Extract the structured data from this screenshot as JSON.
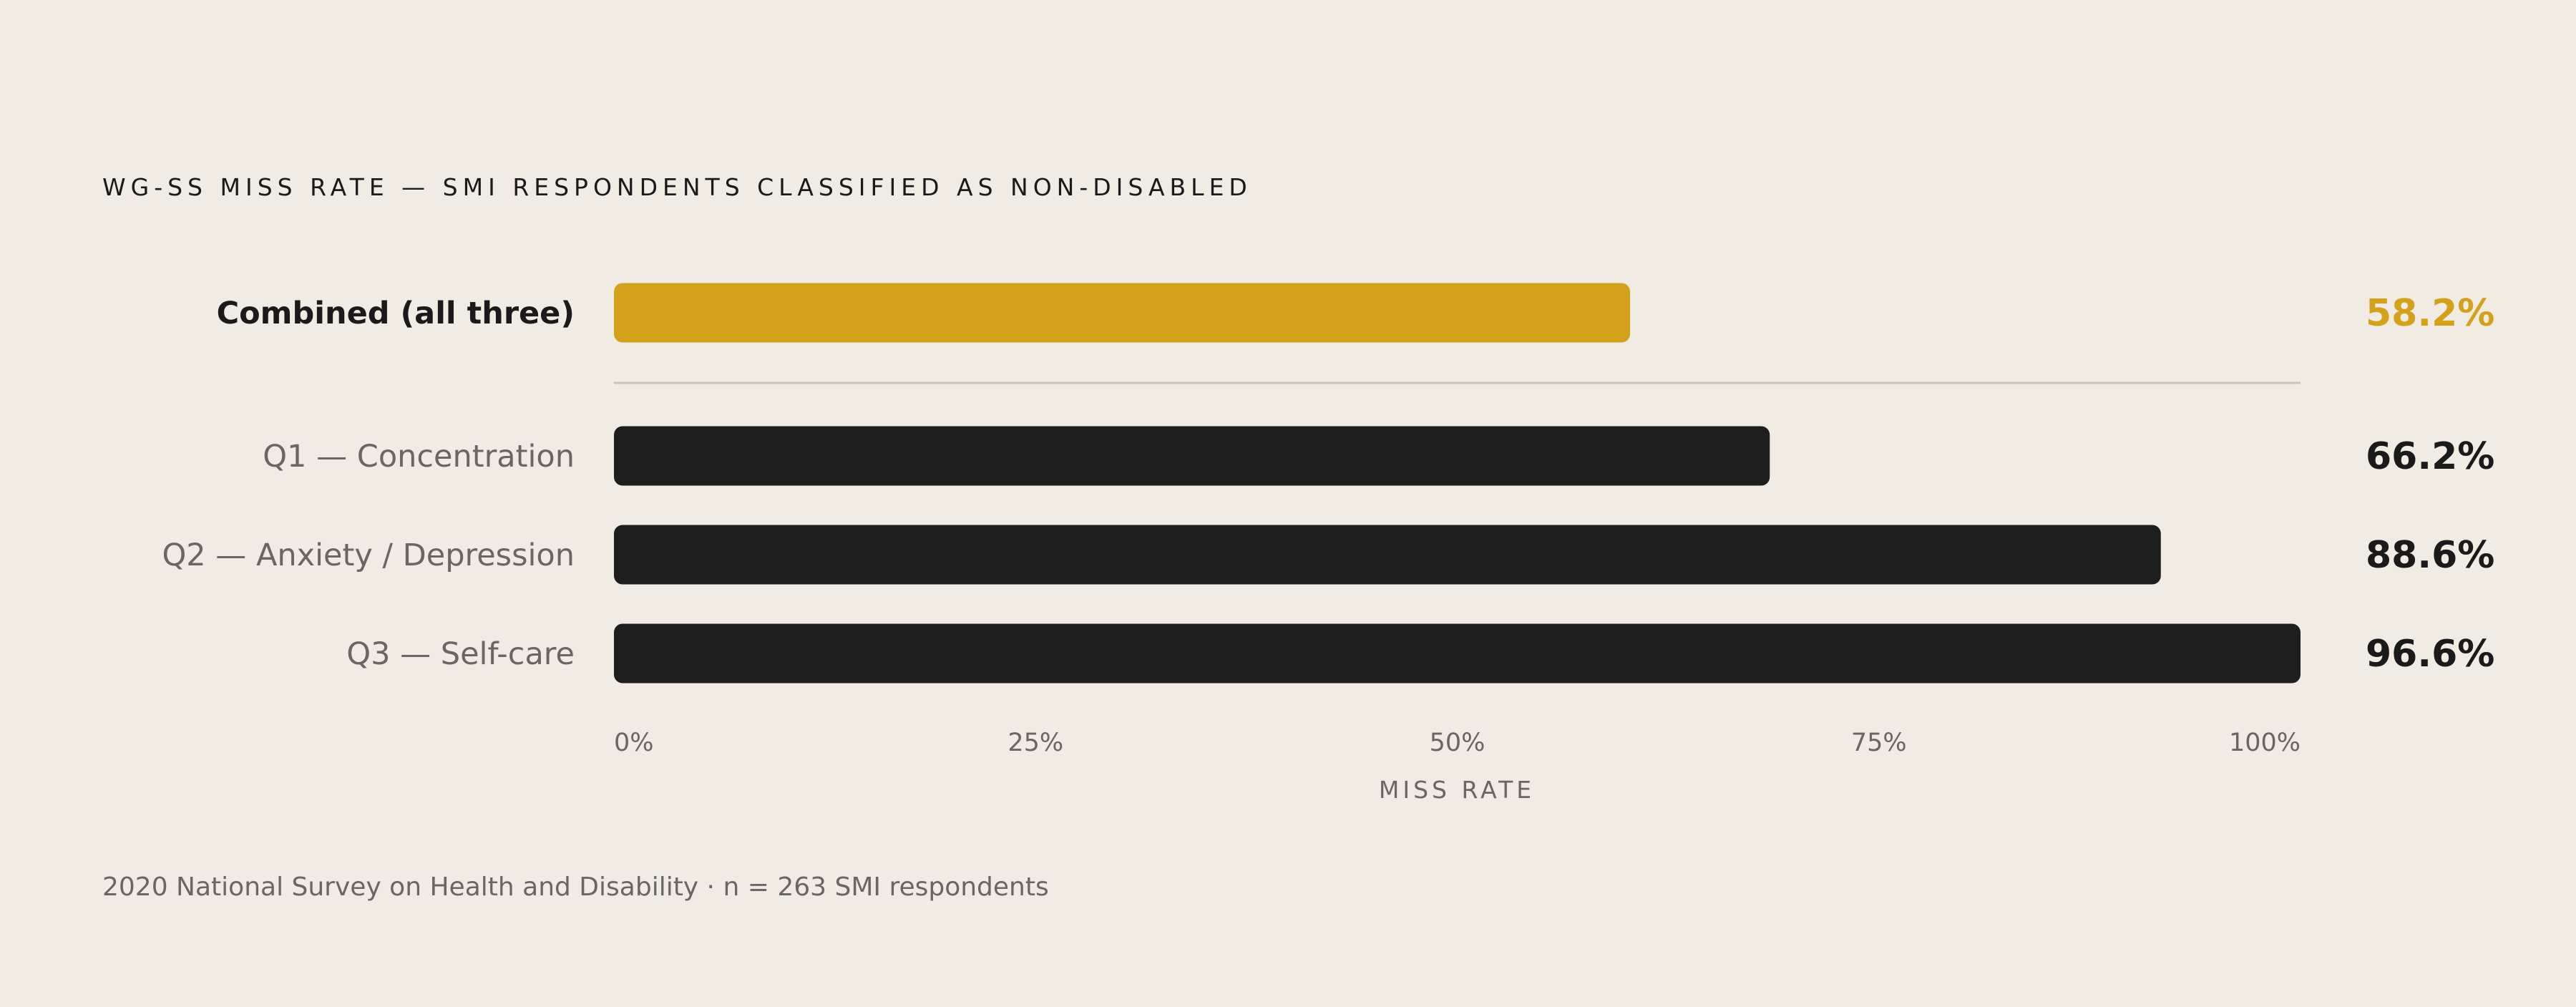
{
  "chart_data": {
    "type": "bar",
    "orientation": "horizontal",
    "title": "WG-SS MISS RATE — SMI RESPONDENTS CLASSIFIED AS NON-DISABLED",
    "categories": [
      "Combined (all three)",
      "Q1 — Concentration",
      "Q2 — Anxiety / Depression",
      "Q3 — Self-care"
    ],
    "values": [
      58.2,
      66.2,
      88.6,
      96.6
    ],
    "value_labels": [
      "58.2%",
      "66.2%",
      "88.6%",
      "96.6%"
    ],
    "highlight_index": 0,
    "xlabel": "MISS RATE",
    "xlim": [
      0,
      100
    ],
    "ticks": [
      0,
      25,
      50,
      75,
      100
    ],
    "tick_labels": [
      "0%",
      "25%",
      "50%",
      "75%",
      "100%"
    ],
    "grid": false,
    "footnote": "2020 National Survey on Health and Disability · n = 263 SMI respondents"
  },
  "colors": {
    "background": "#f0ebe3",
    "highlight": "#d4a11b",
    "bar": "#1e1e1e",
    "divider": "#c9c3ba",
    "muted_text": "#6b6660",
    "text": "#1a1a1a"
  }
}
